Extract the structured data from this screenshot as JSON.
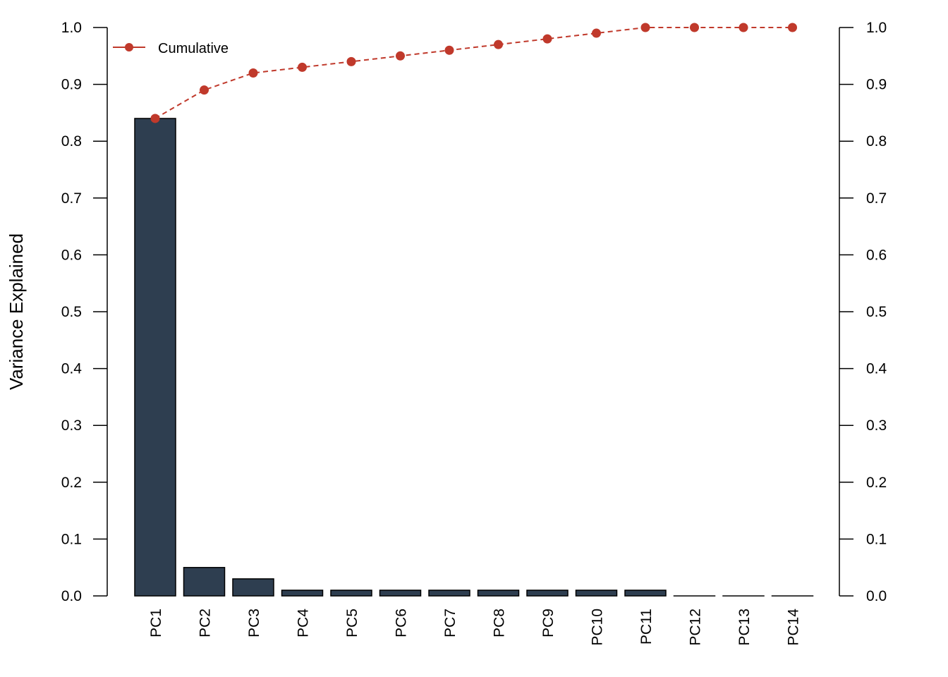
{
  "chart_data": {
    "type": "bar",
    "title": "",
    "xlabel": "",
    "ylabel": "Variance Explained",
    "categories": [
      "PC1",
      "PC2",
      "PC3",
      "PC4",
      "PC5",
      "PC6",
      "PC7",
      "PC8",
      "PC9",
      "PC10",
      "PC11",
      "PC12",
      "PC13",
      "PC14"
    ],
    "series": [
      {
        "type": "bar",
        "values": [
          0.84,
          0.05,
          0.03,
          0.01,
          0.01,
          0.01,
          0.01,
          0.01,
          0.01,
          0.01,
          0.01,
          0.0,
          0.0,
          0.0
        ],
        "color": "#2e3e50"
      },
      {
        "name": "Cumulative",
        "type": "line",
        "line_style": "dashed",
        "marker": "circle",
        "values": [
          0.84,
          0.89,
          0.92,
          0.93,
          0.94,
          0.95,
          0.96,
          0.97,
          0.98,
          0.99,
          1.0,
          1.0,
          1.0,
          1.0
        ],
        "color": "#c0392b"
      }
    ],
    "ylim": [
      0,
      1
    ],
    "y_ticks": [
      "0.0",
      "0.1",
      "0.2",
      "0.3",
      "0.4",
      "0.5",
      "0.6",
      "0.7",
      "0.8",
      "0.9",
      "1.0"
    ],
    "secondary_y_axis": true,
    "secondary_ylim": [
      0,
      1
    ],
    "grid": false,
    "legend": {
      "placement": "top-left",
      "entries": [
        "Cumulative"
      ]
    }
  }
}
